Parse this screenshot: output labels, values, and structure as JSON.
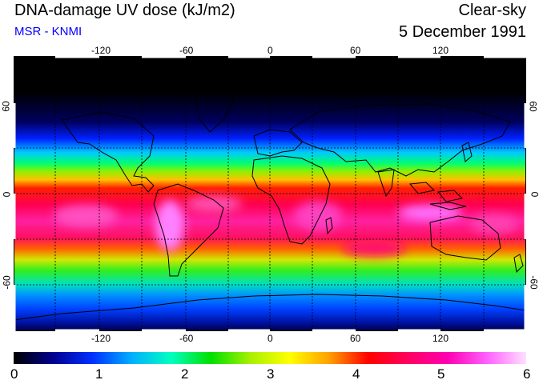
{
  "header": {
    "title": "DNA-damage UV dose (kJ/m2)",
    "source": "MSR - KNMI",
    "condition": "Clear-sky",
    "date": "5 December 1991"
  },
  "colors": {
    "source_text": "#0000ff",
    "grid": "#000000"
  },
  "map": {
    "lon_ticks": [
      "-120",
      "-60",
      "0",
      "60",
      "120"
    ],
    "lat_ticks": [
      "60",
      "0",
      "-60"
    ]
  },
  "colorbar": {
    "min": 0,
    "max": 6,
    "labels": [
      "0",
      "1",
      "2",
      "3",
      "4",
      "5",
      "6"
    ],
    "stops": [
      "#000000",
      "#000090",
      "#0030ff",
      "#00b0ff",
      "#00ffc0",
      "#00e000",
      "#a8f000",
      "#ffff00",
      "#ffa000",
      "#ff0000",
      "#ff0060",
      "#ff00b0",
      "#ff60ff",
      "#ffe0ff"
    ]
  }
}
